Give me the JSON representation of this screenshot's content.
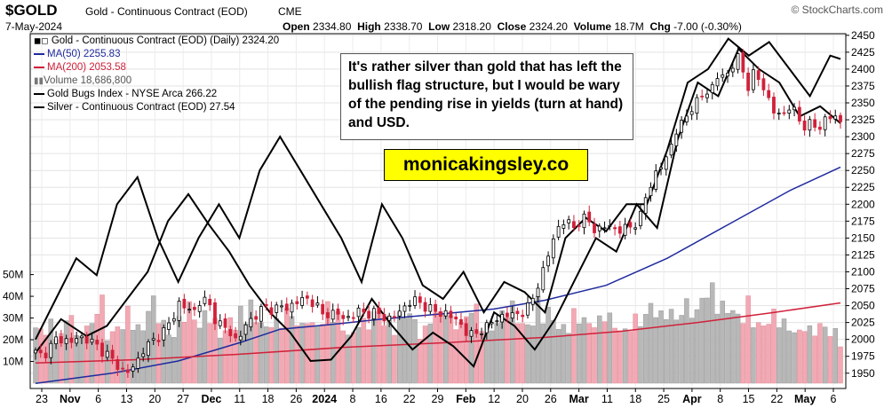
{
  "header": {
    "symbol": "$GOLD",
    "name": "Gold - Continuous Contract (EOD)",
    "exchange": "CME",
    "date": "7-May-2024",
    "brand": "© StockCharts.com",
    "open_label": "Open",
    "open": "2334.80",
    "high_label": "High",
    "high": "2338.70",
    "low_label": "Low",
    "low": "2318.20",
    "close_label": "Close",
    "close": "2324.20",
    "volume_label": "Volume",
    "volume": "18.7M",
    "chg_label": "Chg",
    "chg": "-7.00 (-0.30%)"
  },
  "legend": [
    {
      "text": "Gold - Continuous Contract (EOD) (Daily) 2324.20",
      "color": "#000000",
      "icon": "candle-icon"
    },
    {
      "text": "MA(50) 2255.83",
      "color": "#1f2a9e",
      "icon": "line-swatch"
    },
    {
      "text": "MA(200) 2053.58",
      "color": "#d0213a",
      "icon": "line-swatch"
    },
    {
      "text": "Volume 18,686,800",
      "color": "#555555",
      "icon": "bar-icon"
    },
    {
      "text": "Gold Bugs Index - NYSE Arca 266.22",
      "color": "#000000",
      "icon": "line-swatch"
    },
    {
      "text": "Silver - Continuous Contract (EOD) 27.54",
      "color": "#000000",
      "icon": "line-swatch"
    }
  ],
  "annotation": "It's rather silver than gold that has left the bullish flag structure, but I would be wary of the pending rise in yields (turn at hand) and USD.",
  "watermark": "monicakingsley.co",
  "chart_data": {
    "type": "candlestick",
    "title": "Gold - Continuous Contract (EOD) (Daily)",
    "right_axis_ticks": [
      "2450",
      "2425",
      "2400",
      "2375",
      "2350",
      "2325",
      "2300",
      "2275",
      "2250",
      "2225",
      "2200",
      "2175",
      "2150",
      "2125",
      "2100",
      "2075",
      "2050",
      "2025",
      "2000",
      "1975",
      "1950"
    ],
    "price_ylim": [
      1930,
      2455
    ],
    "volume_ticks": [
      "50M",
      "40M",
      "30M",
      "20M",
      "10M"
    ],
    "volume_ylim": [
      0,
      58
    ],
    "x_tick_labels": [
      "23",
      "Nov",
      "6",
      "13",
      "20",
      "27",
      "Dec",
      "11",
      "18",
      "26",
      "2024",
      "8",
      "16",
      "22",
      "29",
      "Feb",
      "12",
      "20",
      "26",
      "Mar",
      "11",
      "18",
      "25",
      "Apr",
      "8",
      "15",
      "22",
      "May",
      "6"
    ],
    "x_tick_bold": [
      "Nov",
      "Dec",
      "2024",
      "Feb",
      "Mar",
      "Apr",
      "May"
    ],
    "ohlc_anchors": [
      1981,
      1975,
      1988,
      2002,
      2000,
      1995,
      2005,
      2000,
      1996,
      1985,
      1978,
      1965,
      1955,
      1951,
      1965,
      1985,
      1995,
      2003,
      2015,
      2028,
      2055,
      2045,
      2040,
      2060,
      2055,
      2030,
      2020,
      2010,
      1998,
      2015,
      2030,
      2040,
      2048,
      2043,
      2050,
      2045,
      2055,
      2058,
      2060,
      2052,
      2035,
      2040,
      2038,
      2030,
      2035,
      2042,
      2038,
      2040,
      2036,
      2030,
      2035,
      2045,
      2055,
      2058,
      2050,
      2045,
      2038,
      2040,
      2032,
      2025,
      2010,
      2005,
      2015,
      2020,
      2030,
      2035,
      2036,
      2038,
      2040,
      2055,
      2085,
      2110,
      2150,
      2170,
      2175,
      2165,
      2180,
      2175,
      2160,
      2165,
      2170,
      2158,
      2165,
      2168,
      2175,
      2215,
      2240,
      2255,
      2275,
      2305,
      2320,
      2340,
      2350,
      2365,
      2370,
      2390,
      2390,
      2405,
      2420,
      2370,
      2395,
      2380,
      2355,
      2330,
      2335,
      2345,
      2330,
      2315,
      2320,
      2310,
      2330,
      2328,
      2324
    ],
    "ma50": [
      [
        0,
        1935
      ],
      [
        15,
        1950
      ],
      [
        28,
        1968
      ],
      [
        40,
        1995
      ],
      [
        48,
        2015
      ],
      [
        58,
        2022
      ],
      [
        68,
        2030
      ],
      [
        80,
        2038
      ],
      [
        90,
        2045
      ],
      [
        100,
        2058
      ],
      [
        112,
        2080
      ],
      [
        124,
        2120
      ],
      [
        136,
        2170
      ],
      [
        148,
        2220
      ],
      [
        158,
        2255
      ]
    ],
    "ma200": [
      [
        0,
        1965
      ],
      [
        20,
        1970
      ],
      [
        40,
        1978
      ],
      [
        60,
        1988
      ],
      [
        80,
        1995
      ],
      [
        100,
        2003
      ],
      [
        115,
        2012
      ],
      [
        130,
        2025
      ],
      [
        145,
        2040
      ],
      [
        158,
        2054
      ]
    ],
    "gold_bugs_path": [
      [
        0,
        1980
      ],
      [
        5,
        2030
      ],
      [
        10,
        2005
      ],
      [
        14,
        2020
      ],
      [
        18,
        2060
      ],
      [
        22,
        2100
      ],
      [
        26,
        2175
      ],
      [
        30,
        2215
      ],
      [
        34,
        2170
      ],
      [
        38,
        2130
      ],
      [
        42,
        2080
      ],
      [
        46,
        2040
      ],
      [
        50,
        2010
      ],
      [
        54,
        1968
      ],
      [
        58,
        1970
      ],
      [
        62,
        2005
      ],
      [
        66,
        2060
      ],
      [
        70,
        2020
      ],
      [
        74,
        1985
      ],
      [
        78,
        2010
      ],
      [
        82,
        1990
      ],
      [
        86,
        1960
      ],
      [
        90,
        2040
      ],
      [
        94,
        2020
      ],
      [
        98,
        1985
      ],
      [
        102,
        2030
      ],
      [
        106,
        2090
      ],
      [
        110,
        2150
      ],
      [
        114,
        2130
      ],
      [
        118,
        2200
      ],
      [
        122,
        2165
      ],
      [
        126,
        2295
      ],
      [
        130,
        2380
      ],
      [
        134,
        2360
      ],
      [
        138,
        2430
      ],
      [
        142,
        2400
      ],
      [
        146,
        2380
      ],
      [
        150,
        2330
      ],
      [
        154,
        2345
      ],
      [
        158,
        2320
      ]
    ],
    "silver_path": [
      [
        0,
        2000
      ],
      [
        4,
        2060
      ],
      [
        8,
        2120
      ],
      [
        12,
        2095
      ],
      [
        16,
        2200
      ],
      [
        20,
        2240
      ],
      [
        24,
        2150
      ],
      [
        28,
        2085
      ],
      [
        32,
        2150
      ],
      [
        36,
        2200
      ],
      [
        40,
        2150
      ],
      [
        44,
        2250
      ],
      [
        48,
        2300
      ],
      [
        52,
        2250
      ],
      [
        56,
        2200
      ],
      [
        60,
        2150
      ],
      [
        64,
        2085
      ],
      [
        68,
        2200
      ],
      [
        72,
        2150
      ],
      [
        76,
        2080
      ],
      [
        80,
        2060
      ],
      [
        84,
        2100
      ],
      [
        88,
        2040
      ],
      [
        92,
        2085
      ],
      [
        96,
        2070
      ],
      [
        100,
        2040
      ],
      [
        104,
        2150
      ],
      [
        108,
        2180
      ],
      [
        112,
        2160
      ],
      [
        116,
        2200
      ],
      [
        120,
        2200
      ],
      [
        124,
        2280
      ],
      [
        128,
        2380
      ],
      [
        132,
        2400
      ],
      [
        136,
        2445
      ],
      [
        140,
        2420
      ],
      [
        144,
        2440
      ],
      [
        148,
        2400
      ],
      [
        152,
        2360
      ],
      [
        156,
        2420
      ],
      [
        158,
        2415
      ]
    ],
    "volume_heights": [
      30,
      22,
      28,
      18,
      25,
      33,
      20,
      27,
      24,
      36,
      19,
      23,
      28,
      31,
      25,
      22,
      35,
      30,
      26,
      21,
      27,
      33,
      29,
      24,
      30,
      26,
      22,
      28,
      25,
      31,
      34,
      27,
      23,
      29,
      26,
      32,
      28,
      24,
      30,
      25,
      27,
      33,
      29,
      24,
      21,
      28,
      26,
      30,
      32,
      27,
      25,
      29,
      31,
      26,
      23,
      28,
      30,
      34,
      27,
      25,
      29,
      32,
      28,
      24,
      26,
      30,
      33,
      29,
      25,
      27,
      35,
      31,
      28,
      24,
      26,
      30,
      28,
      25,
      27,
      31,
      29,
      24,
      22,
      28,
      26,
      30,
      33,
      29,
      31,
      27,
      32,
      34,
      30,
      38,
      41,
      36,
      33,
      31,
      29,
      35,
      28,
      25,
      27,
      30,
      26,
      24,
      22,
      26,
      23,
      25,
      24,
      22,
      19
    ]
  }
}
